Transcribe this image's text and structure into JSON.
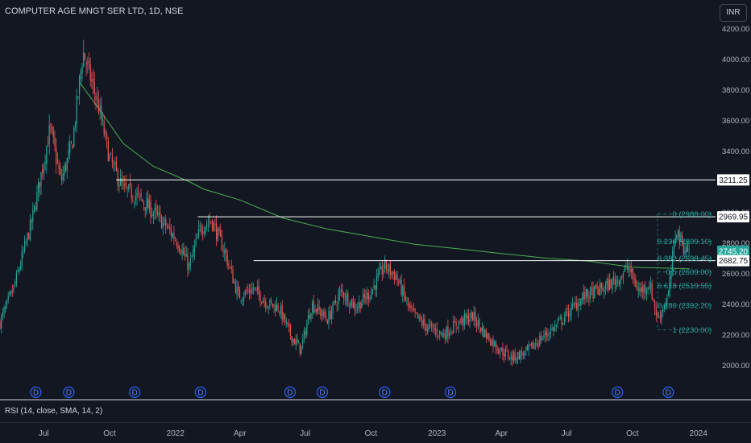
{
  "title": "COMPUTER AGE MNGT SER LTD, 1D, NSE",
  "currency_button": "INR",
  "rsi_label": "RSI (14, close, SMA, 14, 2)",
  "colors": {
    "up": "#26a69a",
    "down": "#ef5350",
    "sma": "#4caf50",
    "bg": "#131722",
    "fib": "#26a69a",
    "line": "#ffffff"
  },
  "dividend_marker_label": "D",
  "chart_data": {
    "type": "candlestick",
    "y_ticks": [
      "2000.00",
      "2200.00",
      "2400.00",
      "2600.00",
      "2800.00",
      "3000.00",
      "3200.00",
      "3400.00",
      "3600.00",
      "3800.00",
      "4000.00",
      "4200.00"
    ],
    "ylim": [
      1870,
      4240
    ],
    "x_ticks": [
      "Jul",
      "Oct",
      "2022",
      "Apr",
      "Jul",
      "Oct",
      "2023",
      "Apr",
      "Jul",
      "Oct",
      "2024"
    ],
    "price_tags": [
      {
        "label": "3211.25",
        "value": 3211.25,
        "style": "white"
      },
      {
        "label": "2969.95",
        "value": 2969.95,
        "style": "white"
      },
      {
        "label": "2745.20",
        "value": 2745.2,
        "style": "green"
      },
      {
        "label": "2682.75",
        "value": 2682.75,
        "style": "white"
      }
    ],
    "horizontal_levels": [
      {
        "value": 3211.25,
        "from": "2021-10-10"
      },
      {
        "value": 2969.95,
        "from": "2022-02-01"
      },
      {
        "value": 2682.75,
        "from": "2022-04-20"
      }
    ],
    "fib_levels": [
      {
        "label": "0 (2988.00)",
        "value": 2988.0
      },
      {
        "label": "0.236 (2809.10)",
        "value": 2809.1
      },
      {
        "label": "0.382 (2698.45)",
        "value": 2698.45
      },
      {
        "label": "0.5 (2609.00)",
        "value": 2609.0
      },
      {
        "label": "0.618 (2519.55)",
        "value": 2519.55
      },
      {
        "label": "0.786 (2392.20)",
        "value": 2392.2
      },
      {
        "label": "1 (2230.00)",
        "value": 2230.0
      }
    ],
    "dividend_dates": [
      "2021-06-20",
      "2021-08-05",
      "2021-11-05",
      "2022-02-05",
      "2022-06-10",
      "2022-07-25",
      "2022-10-20",
      "2023-01-20",
      "2023-09-10",
      "2023-11-20"
    ],
    "price_path": [
      [
        "2021-05-01",
        2280
      ],
      [
        "2021-05-20",
        2500
      ],
      [
        "2021-06-15",
        2950
      ],
      [
        "2021-07-10",
        3550
      ],
      [
        "2021-07-25",
        3200
      ],
      [
        "2021-08-10",
        3450
      ],
      [
        "2021-08-25",
        4050
      ],
      [
        "2021-09-15",
        3700
      ],
      [
        "2021-10-01",
        3350
      ],
      [
        "2021-10-20",
        3150
      ],
      [
        "2021-11-10",
        3100
      ],
      [
        "2021-12-01",
        3000
      ],
      [
        "2021-12-20",
        2900
      ],
      [
        "2022-01-05",
        2800
      ],
      [
        "2022-01-20",
        2640
      ],
      [
        "2022-02-05",
        2900
      ],
      [
        "2022-02-20",
        2950
      ],
      [
        "2022-03-10",
        2750
      ],
      [
        "2022-03-30",
        2450
      ],
      [
        "2022-04-20",
        2500
      ],
      [
        "2022-05-10",
        2400
      ],
      [
        "2022-05-25",
        2380
      ],
      [
        "2022-06-10",
        2200
      ],
      [
        "2022-06-25",
        2100
      ],
      [
        "2022-07-10",
        2400
      ],
      [
        "2022-08-01",
        2300
      ],
      [
        "2022-08-20",
        2480
      ],
      [
        "2022-09-10",
        2380
      ],
      [
        "2022-10-01",
        2480
      ],
      [
        "2022-10-20",
        2650
      ],
      [
        "2022-11-05",
        2580
      ],
      [
        "2022-11-25",
        2350
      ],
      [
        "2022-12-15",
        2260
      ],
      [
        "2023-01-10",
        2200
      ],
      [
        "2023-02-01",
        2280
      ],
      [
        "2023-02-20",
        2320
      ],
      [
        "2023-03-10",
        2200
      ],
      [
        "2023-03-30",
        2100
      ],
      [
        "2023-04-15",
        2050
      ],
      [
        "2023-05-05",
        2080
      ],
      [
        "2023-05-25",
        2170
      ],
      [
        "2023-06-15",
        2250
      ],
      [
        "2023-07-05",
        2350
      ],
      [
        "2023-07-25",
        2450
      ],
      [
        "2023-08-20",
        2500
      ],
      [
        "2023-09-10",
        2560
      ],
      [
        "2023-09-25",
        2640
      ],
      [
        "2023-10-10",
        2480
      ],
      [
        "2023-10-25",
        2530
      ],
      [
        "2023-11-05",
        2300
      ],
      [
        "2023-11-20",
        2450
      ],
      [
        "2023-12-01",
        2900
      ],
      [
        "2023-12-10",
        2780
      ],
      [
        "2023-12-20",
        2745
      ]
    ],
    "sma_path": [
      [
        "2021-08-20",
        3850
      ],
      [
        "2021-09-20",
        3650
      ],
      [
        "2021-10-20",
        3450
      ],
      [
        "2021-12-01",
        3300
      ],
      [
        "2022-01-20",
        3200
      ],
      [
        "2022-02-10",
        3150
      ],
      [
        "2022-04-01",
        3080
      ],
      [
        "2022-06-01",
        2960
      ],
      [
        "2022-08-01",
        2890
      ],
      [
        "2022-10-01",
        2840
      ],
      [
        "2022-12-01",
        2790
      ],
      [
        "2023-02-01",
        2760
      ],
      [
        "2023-04-01",
        2730
      ],
      [
        "2023-06-01",
        2700
      ],
      [
        "2023-08-01",
        2680
      ],
      [
        "2023-10-01",
        2640
      ],
      [
        "2023-12-20",
        2630
      ]
    ]
  }
}
